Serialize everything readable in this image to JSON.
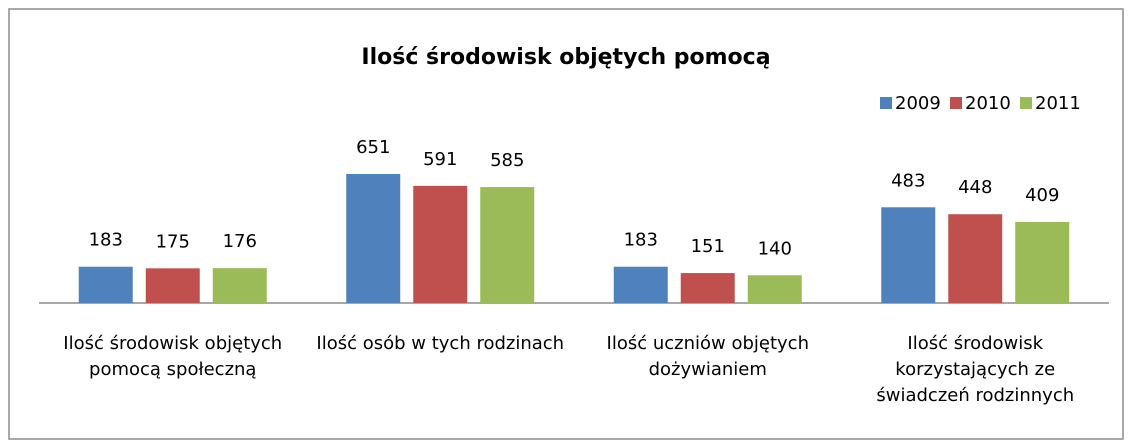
{
  "chart_data": {
    "type": "bar",
    "title": "Ilość środowisk objętych pomocą",
    "categories": [
      "Ilość środowisk objętych pomocą społeczną",
      "Ilość osób w tych rodzinach",
      "Ilość uczniów objętych dożywianiem",
      "Ilość środowisk korzystających  ze świadczeń rodzinnych"
    ],
    "series": [
      {
        "name": "2009",
        "color": "#4f81bd",
        "values": [
          183,
          651,
          183,
          483
        ]
      },
      {
        "name": "2010",
        "color": "#c0504d",
        "values": [
          175,
          591,
          151,
          448
        ]
      },
      {
        "name": "2011",
        "color": "#9bbb59",
        "values": [
          176,
          585,
          140,
          409
        ]
      }
    ],
    "legend": "top-right"
  }
}
